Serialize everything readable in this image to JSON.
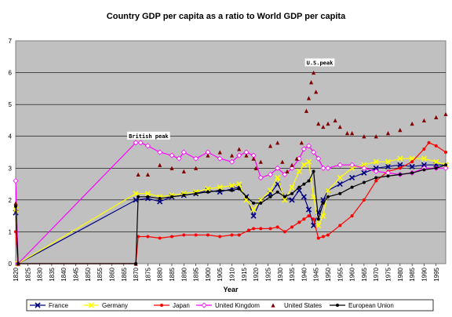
{
  "chart_data": {
    "type": "line",
    "title": "Country GDP per capita as a ratio to World GDP per capita",
    "xlabel": "Year",
    "ylabel": "",
    "xlim": [
      1820,
      1999
    ],
    "ylim": [
      0,
      7
    ],
    "y_ticks": [
      "0",
      "1",
      "2",
      "3",
      "4",
      "5",
      "6",
      "7"
    ],
    "x_ticks": [
      "1820",
      "1825",
      "1830",
      "1835",
      "1840",
      "1845",
      "1850",
      "1855",
      "1860",
      "1865",
      "1870",
      "1875",
      "1880",
      "1885",
      "1890",
      "1895",
      "1900",
      "1905",
      "1910",
      "1915",
      "1920",
      "1925",
      "1930",
      "1935",
      "1940",
      "1945",
      "1950",
      "1955",
      "1960",
      "1965",
      "1970",
      "1975",
      "1980",
      "1985",
      "1990",
      "1995"
    ],
    "grid": "horizontal",
    "legend_position": "bottom",
    "plot_background": "#c0c0c0",
    "annotations": [
      {
        "text": "British peak",
        "x": 1870,
        "y": 3.8
      },
      {
        "text": "U.S.peak",
        "x": 1944,
        "y": 6.1
      }
    ],
    "series": [
      {
        "name": "France",
        "color": "#000080",
        "marker": "x",
        "x": [
          1820,
          1821,
          1870,
          1875,
          1880,
          1885,
          1890,
          1895,
          1900,
          1905,
          1910,
          1913,
          1916,
          1919,
          1922,
          1926,
          1929,
          1932,
          1935,
          1938,
          1940,
          1942,
          1944,
          1946,
          1948,
          1950,
          1955,
          1960,
          1965,
          1970,
          1975,
          1980,
          1985,
          1990,
          1995,
          1999
        ],
        "y": [
          1.6,
          0,
          2.0,
          2.05,
          1.95,
          2.1,
          2.15,
          2.2,
          2.3,
          2.25,
          2.35,
          2.4,
          2.1,
          1.5,
          2.0,
          2.2,
          2.5,
          2.1,
          2.0,
          2.3,
          2.1,
          1.7,
          1.2,
          1.6,
          2.0,
          2.3,
          2.5,
          2.7,
          2.85,
          3.0,
          3.05,
          3.1,
          3.05,
          3.1,
          3.1,
          3.1
        ]
      },
      {
        "name": "Germany",
        "color": "#ffff00",
        "marker": "x",
        "x": [
          1820,
          1821,
          1870,
          1875,
          1880,
          1885,
          1890,
          1895,
          1900,
          1905,
          1910,
          1913,
          1916,
          1919,
          1922,
          1926,
          1929,
          1932,
          1935,
          1938,
          1940,
          1942,
          1944,
          1946,
          1948,
          1950,
          1955,
          1960,
          1965,
          1970,
          1975,
          1980,
          1985,
          1990,
          1995,
          1999
        ],
        "y": [
          1.7,
          0,
          2.2,
          2.2,
          2.1,
          2.15,
          2.2,
          2.25,
          2.35,
          2.4,
          2.45,
          2.5,
          2.0,
          1.7,
          2.0,
          2.3,
          2.7,
          2.0,
          2.4,
          2.9,
          3.1,
          3.2,
          2.1,
          1.2,
          1.5,
          2.3,
          2.7,
          3.0,
          3.1,
          3.2,
          3.2,
          3.3,
          3.3,
          3.3,
          3.2,
          3.1
        ]
      },
      {
        "name": "Japan",
        "color": "#ff0000",
        "marker": "circle",
        "x": [
          1820,
          1821,
          1870,
          1871,
          1875,
          1880,
          1885,
          1890,
          1895,
          1900,
          1905,
          1910,
          1913,
          1917,
          1919,
          1922,
          1926,
          1929,
          1932,
          1935,
          1938,
          1940,
          1942,
          1944,
          1946,
          1948,
          1950,
          1955,
          1960,
          1965,
          1970,
          1975,
          1980,
          1985,
          1990,
          1992,
          1995,
          1999
        ],
        "y": [
          1.0,
          0,
          0.0,
          0.85,
          0.85,
          0.8,
          0.85,
          0.9,
          0.9,
          0.9,
          0.85,
          0.9,
          0.9,
          1.05,
          1.1,
          1.1,
          1.1,
          1.15,
          1.0,
          1.15,
          1.3,
          1.4,
          1.5,
          1.4,
          0.8,
          0.85,
          0.9,
          1.2,
          1.5,
          2.0,
          2.6,
          2.9,
          3.0,
          3.2,
          3.6,
          3.8,
          3.7,
          3.5
        ]
      },
      {
        "name": "United Kingdom",
        "color": "#ff00ff",
        "marker": "diamond",
        "x": [
          1820,
          1821,
          1870,
          1872,
          1875,
          1880,
          1885,
          1888,
          1890,
          1895,
          1900,
          1905,
          1910,
          1913,
          1916,
          1919,
          1922,
          1926,
          1929,
          1932,
          1935,
          1938,
          1940,
          1942,
          1944,
          1946,
          1948,
          1950,
          1955,
          1960,
          1965,
          1970,
          1975,
          1980,
          1985,
          1990,
          1995,
          1999
        ],
        "y": [
          2.6,
          0,
          3.8,
          3.8,
          3.7,
          3.5,
          3.4,
          3.3,
          3.5,
          3.3,
          3.5,
          3.3,
          3.2,
          3.4,
          3.5,
          3.4,
          2.7,
          2.8,
          3.0,
          2.8,
          3.0,
          3.3,
          3.6,
          3.7,
          3.5,
          3.3,
          3.0,
          3.0,
          3.1,
          3.1,
          3.0,
          2.9,
          2.85,
          2.8,
          2.85,
          3.0,
          3.0,
          3.0
        ]
      },
      {
        "name": "United States",
        "color": "#800000",
        "marker": "triangle",
        "x": [
          1820,
          1821,
          1870,
          1871,
          1875,
          1880,
          1885,
          1890,
          1895,
          1900,
          1905,
          1910,
          1913,
          1916,
          1919,
          1920,
          1922,
          1926,
          1929,
          1931,
          1933,
          1935,
          1937,
          1939,
          1941,
          1942,
          1943,
          1944,
          1945,
          1946,
          1948,
          1950,
          1953,
          1955,
          1958,
          1960,
          1965,
          1970,
          1975,
          1980,
          1985,
          1990,
          1995,
          1999
        ],
        "y": [
          1.9,
          0,
          0.0,
          2.8,
          2.8,
          3.1,
          3.0,
          2.9,
          3.0,
          3.4,
          3.5,
          3.4,
          3.6,
          3.4,
          3.3,
          3.0,
          3.2,
          3.7,
          3.8,
          3.2,
          2.9,
          3.1,
          3.3,
          3.8,
          4.8,
          5.2,
          5.7,
          6.0,
          5.4,
          4.4,
          4.3,
          4.4,
          4.5,
          4.3,
          4.1,
          4.1,
          4.0,
          4.0,
          4.1,
          4.2,
          4.4,
          4.5,
          4.6,
          4.7
        ]
      },
      {
        "name": "European Union",
        "color": "#000000",
        "marker": "circle",
        "x": [
          1820,
          1821,
          1870,
          1871,
          1875,
          1880,
          1885,
          1890,
          1895,
          1900,
          1905,
          1910,
          1913,
          1916,
          1919,
          1922,
          1926,
          1929,
          1932,
          1935,
          1938,
          1940,
          1942,
          1944,
          1946,
          1948,
          1950,
          1955,
          1960,
          1965,
          1970,
          1975,
          1980,
          1985,
          1990,
          1995,
          1999
        ],
        "y": [
          1.8,
          0,
          0.0,
          2.1,
          2.1,
          2.05,
          2.1,
          2.15,
          2.2,
          2.25,
          2.3,
          2.3,
          2.35,
          2.1,
          1.9,
          1.9,
          2.1,
          2.25,
          2.1,
          2.2,
          2.4,
          2.5,
          2.6,
          2.9,
          1.4,
          1.9,
          2.1,
          2.2,
          2.4,
          2.55,
          2.7,
          2.75,
          2.8,
          2.85,
          2.95,
          3.0,
          3.1
        ]
      }
    ]
  }
}
